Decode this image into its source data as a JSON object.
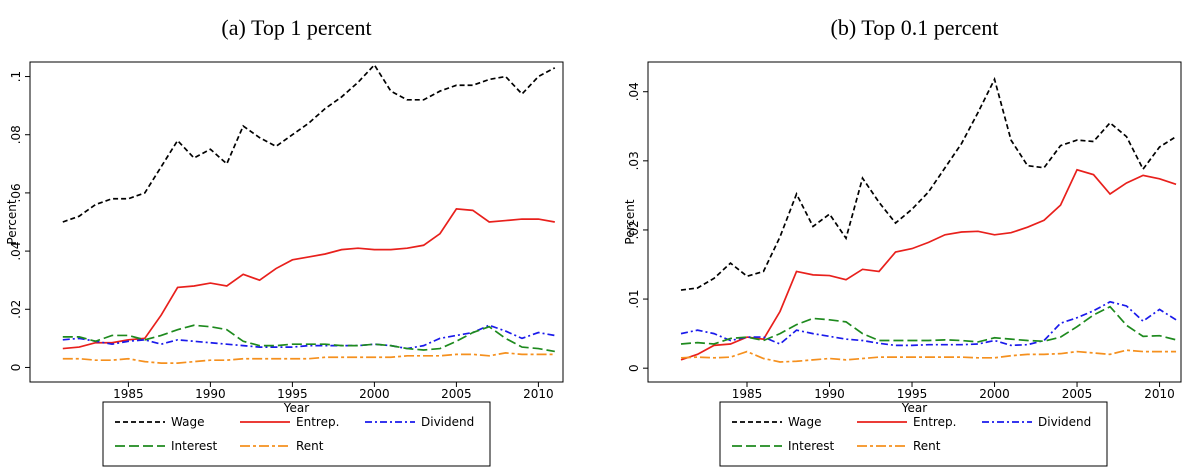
{
  "chart_data": [
    {
      "type": "line",
      "title": "(a) Top 1 percent",
      "x_label": "Year",
      "y_label": "Percent",
      "x": [
        1981,
        1982,
        1983,
        1984,
        1985,
        1986,
        1987,
        1988,
        1989,
        1990,
        1991,
        1992,
        1993,
        1994,
        1995,
        1996,
        1997,
        1998,
        1999,
        2000,
        2001,
        2002,
        2003,
        2004,
        2005,
        2006,
        2007,
        2008,
        2009,
        2010,
        2011
      ],
      "xlim": [
        1979,
        2011.5
      ],
      "xticks": [
        1985,
        1990,
        1995,
        2000,
        2005,
        2010
      ],
      "ylim": [
        -0.005,
        0.105
      ],
      "yticks": [
        0,
        {
          "value": 0.02,
          "label": ".02"
        },
        {
          "value": 0.04,
          "label": ".04"
        },
        {
          "value": 0.06,
          "label": ".06"
        },
        {
          "value": 0.08,
          "label": ".08"
        },
        {
          "value": 0.1,
          "label": ".1"
        }
      ],
      "series": [
        {
          "name": "Wage",
          "color": "#000000",
          "style": "dashed",
          "values": [
            0.05,
            0.052,
            0.056,
            0.058,
            0.058,
            0.06,
            0.069,
            0.078,
            0.072,
            0.075,
            0.07,
            0.083,
            0.079,
            0.076,
            0.08,
            0.084,
            0.089,
            0.093,
            0.098,
            0.104,
            0.095,
            0.092,
            0.092,
            0.095,
            0.097,
            0.097,
            0.099,
            0.1,
            0.094,
            0.1,
            0.103
          ]
        },
        {
          "name": "Entrep.",
          "color": "#e8201c",
          "style": "solid",
          "values": [
            0.0065,
            0.007,
            0.0085,
            0.0085,
            0.0095,
            0.01,
            0.018,
            0.0275,
            0.028,
            0.029,
            0.028,
            0.032,
            0.03,
            0.034,
            0.037,
            0.038,
            0.039,
            0.0405,
            0.041,
            0.0405,
            0.0405,
            0.041,
            0.042,
            0.046,
            0.0545,
            0.054,
            0.05,
            0.0505,
            0.051,
            0.051,
            0.05
          ]
        },
        {
          "name": "Dividend",
          "color": "#1a1aeb",
          "style": "dashdot",
          "values": [
            0.0095,
            0.01,
            0.009,
            0.008,
            0.009,
            0.0095,
            0.008,
            0.0095,
            0.009,
            0.0085,
            0.008,
            0.0075,
            0.007,
            0.007,
            0.007,
            0.0075,
            0.0075,
            0.0075,
            0.0075,
            0.008,
            0.0075,
            0.0065,
            0.0075,
            0.01,
            0.011,
            0.012,
            0.0145,
            0.0125,
            0.01,
            0.012,
            0.011
          ]
        },
        {
          "name": "Interest",
          "color": "#1e8a1e",
          "style": "longdash",
          "values": [
            0.0105,
            0.0105,
            0.009,
            0.011,
            0.011,
            0.0095,
            0.011,
            0.013,
            0.0145,
            0.014,
            0.013,
            0.009,
            0.0075,
            0.0075,
            0.008,
            0.008,
            0.008,
            0.0075,
            0.0075,
            0.008,
            0.0075,
            0.0065,
            0.006,
            0.0065,
            0.009,
            0.012,
            0.014,
            0.01,
            0.007,
            0.0065,
            0.0055
          ]
        },
        {
          "name": "Rent",
          "color": "#f5901e",
          "style": "longdashdot",
          "values": [
            0.003,
            0.003,
            0.0025,
            0.0025,
            0.003,
            0.002,
            0.0015,
            0.0015,
            0.002,
            0.0025,
            0.0025,
            0.003,
            0.003,
            0.003,
            0.003,
            0.003,
            0.0035,
            0.0035,
            0.0035,
            0.0035,
            0.0035,
            0.004,
            0.004,
            0.004,
            0.0045,
            0.0045,
            0.004,
            0.005,
            0.0045,
            0.0045,
            0.0045
          ]
        }
      ]
    },
    {
      "type": "line",
      "title": "(b) Top 0.1 percent",
      "x_label": "Year",
      "y_label": "Percent",
      "x": [
        1981,
        1982,
        1983,
        1984,
        1985,
        1986,
        1987,
        1988,
        1989,
        1990,
        1991,
        1992,
        1993,
        1994,
        1995,
        1996,
        1997,
        1998,
        1999,
        2000,
        2001,
        2002,
        2003,
        2004,
        2005,
        2006,
        2007,
        2008,
        2009,
        2010,
        2011
      ],
      "xlim": [
        1979,
        2011.3
      ],
      "xticks": [
        1985,
        1990,
        1995,
        2000,
        2005,
        2010
      ],
      "ylim": [
        -0.002,
        0.0443
      ],
      "yticks": [
        0,
        {
          "value": 0.01,
          "label": ".01"
        },
        {
          "value": 0.02,
          "label": ".02"
        },
        {
          "value": 0.03,
          "label": ".03"
        },
        {
          "value": 0.04,
          "label": ".04"
        }
      ],
      "series": [
        {
          "name": "Wage",
          "color": "#000000",
          "style": "dashed",
          "values": [
            0.0113,
            0.0116,
            0.013,
            0.0152,
            0.0133,
            0.014,
            0.019,
            0.0252,
            0.0205,
            0.0223,
            0.0188,
            0.0275,
            0.024,
            0.021,
            0.023,
            0.0255,
            0.029,
            0.0325,
            0.037,
            0.0418,
            0.033,
            0.0293,
            0.029,
            0.0322,
            0.033,
            0.0328,
            0.0355,
            0.0335,
            0.0288,
            0.032,
            0.0335
          ]
        },
        {
          "name": "Entrep.",
          "color": "#e8201c",
          "style": "solid",
          "values": [
            0.0012,
            0.002,
            0.0033,
            0.0035,
            0.0045,
            0.0042,
            0.0082,
            0.014,
            0.0135,
            0.0134,
            0.0128,
            0.0143,
            0.014,
            0.0168,
            0.0173,
            0.0182,
            0.0193,
            0.0197,
            0.0198,
            0.0193,
            0.0196,
            0.0204,
            0.0214,
            0.0236,
            0.0287,
            0.028,
            0.0252,
            0.0268,
            0.0279,
            0.0274,
            0.0266
          ]
        },
        {
          "name": "Dividend",
          "color": "#1a1aeb",
          "style": "dashdot",
          "values": [
            0.005,
            0.0055,
            0.005,
            0.004,
            0.0045,
            0.0045,
            0.0035,
            0.0055,
            0.005,
            0.0046,
            0.0042,
            0.004,
            0.0036,
            0.0033,
            0.0033,
            0.0034,
            0.0034,
            0.0034,
            0.0035,
            0.004,
            0.0033,
            0.0034,
            0.004,
            0.0065,
            0.0073,
            0.0083,
            0.0096,
            0.009,
            0.0068,
            0.0085,
            0.007
          ]
        },
        {
          "name": "Interest",
          "color": "#1e8a1e",
          "style": "longdash",
          "values": [
            0.0035,
            0.0037,
            0.0035,
            0.0043,
            0.0045,
            0.004,
            0.005,
            0.0063,
            0.0072,
            0.007,
            0.0067,
            0.005,
            0.004,
            0.004,
            0.004,
            0.004,
            0.0041,
            0.004,
            0.0038,
            0.0044,
            0.0042,
            0.004,
            0.0039,
            0.0045,
            0.006,
            0.0077,
            0.0089,
            0.0062,
            0.0046,
            0.0047,
            0.0041
          ]
        },
        {
          "name": "Rent",
          "color": "#f5901e",
          "style": "longdashdot",
          "values": [
            0.0015,
            0.0016,
            0.0015,
            0.0016,
            0.0024,
            0.0014,
            0.0009,
            0.001,
            0.0012,
            0.0014,
            0.0012,
            0.0014,
            0.0016,
            0.0016,
            0.0016,
            0.0016,
            0.0016,
            0.0016,
            0.0015,
            0.0015,
            0.0018,
            0.002,
            0.002,
            0.0021,
            0.0024,
            0.0022,
            0.002,
            0.0026,
            0.0024,
            0.0024,
            0.0024
          ]
        }
      ]
    }
  ]
}
